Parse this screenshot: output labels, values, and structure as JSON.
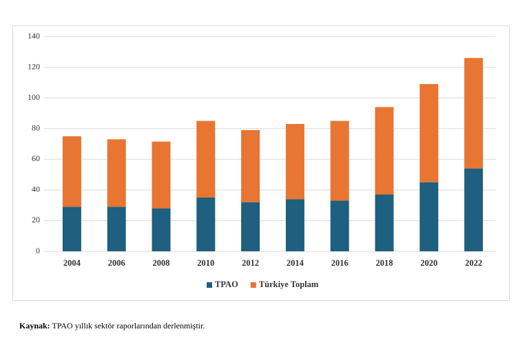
{
  "chart_data": {
    "type": "stacked-bar",
    "categories": [
      "2004",
      "2006",
      "2008",
      "2010",
      "2012",
      "2014",
      "2016",
      "2018",
      "2020",
      "2022"
    ],
    "series": [
      {
        "name": "TPAO",
        "color": "#1f5f7f",
        "values": [
          29,
          29,
          28,
          35,
          32,
          34,
          33,
          37,
          45,
          54
        ]
      },
      {
        "name": "Türkiye Toplam",
        "color": "#e87532",
        "values": [
          46,
          44,
          43.5,
          50,
          47,
          49,
          52,
          57,
          64,
          72
        ]
      }
    ],
    "ylim": [
      0,
      140
    ],
    "yticks": [
      0,
      20,
      40,
      60,
      80,
      100,
      120,
      140
    ],
    "grid": true,
    "legend": "bottom"
  },
  "source": {
    "label": "Kaynak:",
    "text": "TPAO yıllık sektör raporlarından derlenmiştir."
  }
}
